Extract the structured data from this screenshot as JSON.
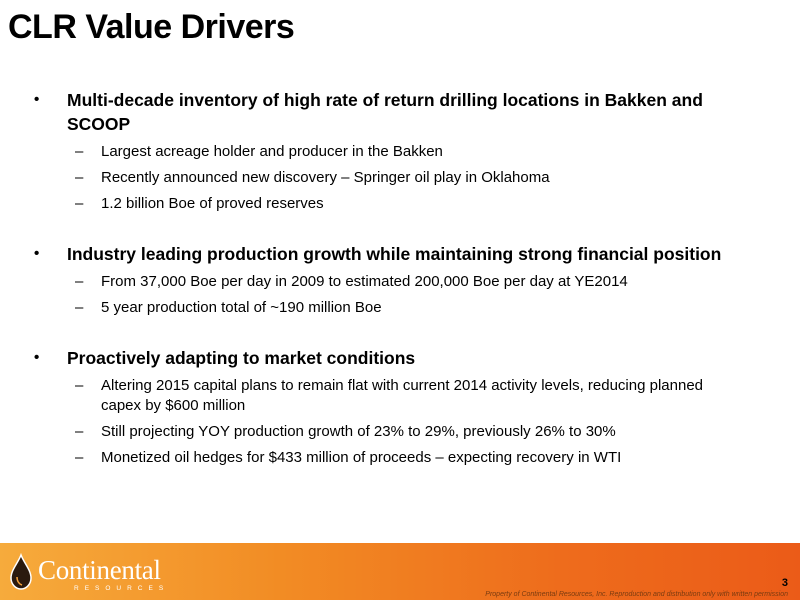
{
  "slide": {
    "title": "CLR Value Drivers",
    "page_number": "3",
    "disclaimer": "Property of Continental Resources, Inc. Reproduction and distribution only with written permission"
  },
  "logo": {
    "name": "Continental",
    "subtitle": "RESOURCES"
  },
  "sections": [
    {
      "heading": "Multi-decade inventory of high rate of return drilling locations in Bakken and SCOOP",
      "items": [
        "Largest acreage holder and producer in the Bakken",
        "Recently announced new discovery – Springer oil play in Oklahoma",
        "1.2 billion Boe of proved reserves"
      ]
    },
    {
      "heading": "Industry leading production growth while maintaining strong financial position",
      "items": [
        "From 37,000 Boe per day in 2009 to estimated 200,000 Boe per day at YE2014",
        "5 year production total of ~190 million Boe"
      ]
    },
    {
      "heading": "Proactively adapting to market conditions",
      "items": [
        "Altering 2015 capital plans to remain flat with current 2014 activity levels, reducing planned capex by $600 million",
        "Still projecting YOY production growth of 23% to 29%, previously 26% to 30%",
        "Monetized oil hedges for $433 million of proceeds – expecting recovery in WTI"
      ]
    }
  ],
  "colors": {
    "footer_start": "#f6ab3c",
    "footer_end": "#eb5b18",
    "logo_drop": "#2b1a0e"
  }
}
